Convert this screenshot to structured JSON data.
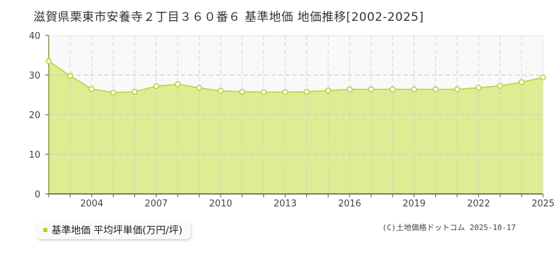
{
  "title": "滋賀県栗東市安養寺２丁目３６０番６ 基準地価 地価推移[2002-2025]",
  "legend": {
    "label": "基準地価 平均坪単価(万円/坪)",
    "color": "#b3d335"
  },
  "copyright": "(C)土地価格ドットコム 2025-10-17",
  "colors": {
    "area_fill": "#dced93",
    "line": "#b3d335",
    "marker_fill": "#ffffff",
    "grid": "#cccccc",
    "axis": "#555555",
    "upper_band": "#f9f9f9"
  },
  "chart_data": {
    "type": "area",
    "title": "滋賀県栗東市安養寺２丁目３６０番６ 基準地価 地価推移[2002-2025]",
    "xlabel": "",
    "ylabel": "",
    "x": [
      2002,
      2003,
      2004,
      2005,
      2006,
      2007,
      2008,
      2009,
      2010,
      2011,
      2012,
      2013,
      2014,
      2015,
      2016,
      2017,
      2018,
      2019,
      2020,
      2021,
      2022,
      2023,
      2024,
      2025
    ],
    "series": [
      {
        "name": "基準地価 平均坪単価(万円/坪)",
        "values": [
          33.5,
          29.8,
          26.5,
          25.6,
          25.8,
          27.2,
          27.7,
          26.8,
          26.0,
          25.8,
          25.7,
          25.7,
          25.8,
          26.1,
          26.4,
          26.4,
          26.4,
          26.4,
          26.4,
          26.4,
          26.8,
          27.3,
          28.2,
          29.4
        ]
      }
    ],
    "xticks": [
      "2004",
      "2007",
      "2010",
      "2013",
      "2016",
      "2019",
      "2022",
      "2025"
    ],
    "yticks": [
      "0",
      "10",
      "20",
      "30",
      "40"
    ],
    "ylim": [
      0,
      40
    ],
    "xlim": [
      2002,
      2025
    ],
    "grid": true,
    "legend_position": "bottom-left"
  }
}
